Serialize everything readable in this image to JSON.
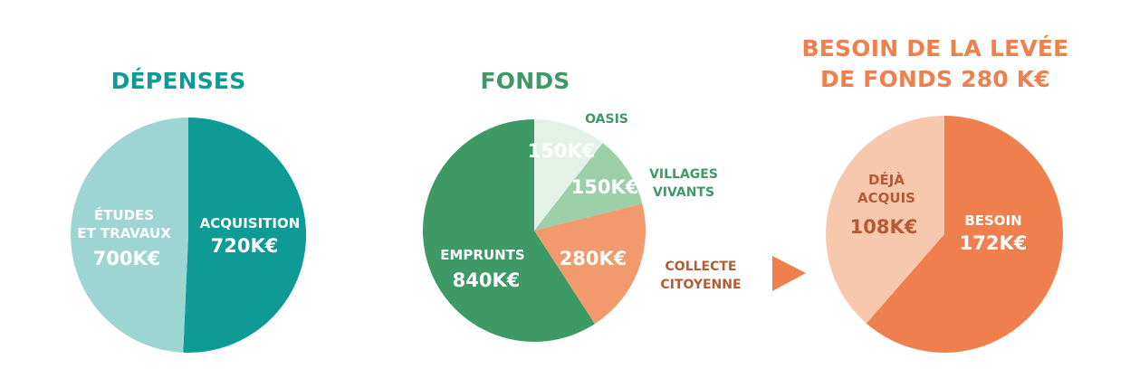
{
  "charts": [
    {
      "title_lines": [
        "DÉPENSES"
      ],
      "title_color": "#0e9b96",
      "chart_data": {
        "type": "pie",
        "unit": "K€",
        "slices": [
          {
            "label_lines": [
              "ACQUISITION"
            ],
            "value_text": "720K€",
            "value": 720,
            "color": "#0e9b96"
          },
          {
            "label_lines": [
              "ÉTUDES",
              "ET TRAVAUX"
            ],
            "value_text": "700K€",
            "value": 700,
            "color": "#9dd5d2"
          }
        ]
      }
    },
    {
      "title_lines": [
        "FONDS"
      ],
      "title_color": "#3e9a64",
      "chart_data": {
        "type": "pie",
        "unit": "K€",
        "slices": [
          {
            "label_lines": [
              "OASIS"
            ],
            "value_text": "150K€",
            "value": 150,
            "color": "#e4f1e6"
          },
          {
            "label_lines": [
              "VILLAGES",
              "VIVANTS"
            ],
            "value_text": "150K€",
            "value": 150,
            "color": "#9dcfa7"
          },
          {
            "label_lines": [
              "COLLECTE",
              "CITOYENNE"
            ],
            "value_text": "280K€",
            "value": 280,
            "color": "#f29a6e"
          },
          {
            "label_lines": [
              "EMPRUNTS"
            ],
            "value_text": "840K€",
            "value": 840,
            "color": "#3e9a64"
          }
        ]
      }
    },
    {
      "title_lines": [
        "BESOIN DE LA LEVÉE",
        "DE FONDS 280 K€"
      ],
      "title_color": "#ef7f4d",
      "chart_data": {
        "type": "pie",
        "unit": "K€",
        "slices": [
          {
            "label_lines": [
              "BESOIN"
            ],
            "value_text": "172K€",
            "value": 172,
            "color": "#ef7f4d"
          },
          {
            "label_lines": [
              "DÉJÀ",
              "ACQUIS"
            ],
            "value_text": "108K€",
            "value": 108,
            "color": "#f8c8ae"
          }
        ]
      }
    }
  ],
  "arrow_color": "#ef7f4d",
  "label_colors": {
    "light": "#ffffff",
    "green_dark": "#3e9a64",
    "orange_dark": "#b65a33"
  }
}
